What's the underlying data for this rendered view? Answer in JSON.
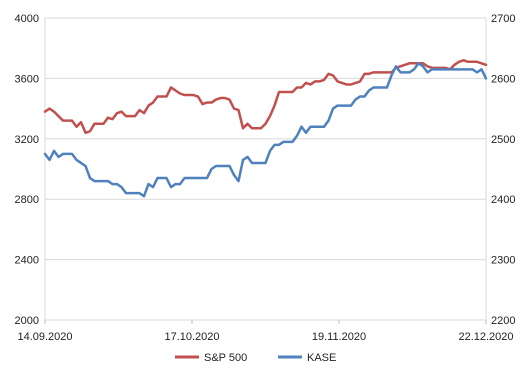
{
  "chart_data": {
    "type": "line",
    "x_ticks": [
      "14.09.2020",
      "17.10.2020",
      "19.11.2020",
      "22.12.2020"
    ],
    "y_left": {
      "ylim": [
        2000,
        4000
      ],
      "ticks": [
        "2000",
        "2400",
        "2800",
        "3200",
        "3600",
        "4000"
      ]
    },
    "y_right": {
      "ylim": [
        2200,
        2700
      ],
      "ticks": [
        "2200",
        "2300",
        "2400",
        "2500",
        "2600",
        "2700"
      ]
    },
    "grid": "horizontal",
    "legend_position": "bottom",
    "series": [
      {
        "name": "S&P 500",
        "axis": "left",
        "color": "#c0504d",
        "values": [
          3380,
          3400,
          3380,
          3350,
          3320,
          3320,
          3320,
          3280,
          3310,
          3240,
          3250,
          3300,
          3300,
          3300,
          3340,
          3330,
          3370,
          3380,
          3350,
          3350,
          3350,
          3390,
          3370,
          3420,
          3440,
          3480,
          3480,
          3480,
          3540,
          3520,
          3500,
          3490,
          3490,
          3490,
          3480,
          3430,
          3440,
          3440,
          3460,
          3470,
          3470,
          3460,
          3400,
          3390,
          3270,
          3300,
          3270,
          3270,
          3270,
          3300,
          3350,
          3420,
          3510,
          3510,
          3510,
          3510,
          3540,
          3540,
          3570,
          3560,
          3580,
          3580,
          3590,
          3630,
          3620,
          3580,
          3570,
          3560,
          3560,
          3570,
          3580,
          3630,
          3630,
          3640,
          3640,
          3640,
          3640,
          3640,
          3670,
          3680,
          3690,
          3700,
          3700,
          3700,
          3700,
          3680,
          3670,
          3670,
          3670,
          3670,
          3660,
          3690,
          3710,
          3720,
          3710,
          3710,
          3710,
          3700,
          3690
        ]
      },
      {
        "name": "KASE",
        "axis": "right",
        "color": "#4f81bd",
        "values": [
          2475,
          2465,
          2480,
          2470,
          2475,
          2475,
          2475,
          2465,
          2460,
          2455,
          2435,
          2430,
          2430,
          2430,
          2430,
          2425,
          2425,
          2420,
          2410,
          2410,
          2410,
          2410,
          2405,
          2425,
          2420,
          2435,
          2435,
          2435,
          2420,
          2425,
          2425,
          2435,
          2435,
          2435,
          2435,
          2435,
          2435,
          2450,
          2455,
          2455,
          2455,
          2455,
          2440,
          2430,
          2465,
          2470,
          2460,
          2460,
          2460,
          2460,
          2480,
          2490,
          2490,
          2495,
          2495,
          2495,
          2505,
          2520,
          2510,
          2520,
          2520,
          2520,
          2520,
          2530,
          2550,
          2555,
          2555,
          2555,
          2555,
          2565,
          2570,
          2570,
          2580,
          2585,
          2585,
          2585,
          2585,
          2605,
          2620,
          2610,
          2610,
          2610,
          2615,
          2625,
          2620,
          2610,
          2615,
          2615,
          2615,
          2615,
          2615,
          2615,
          2615,
          2615,
          2615,
          2615,
          2610,
          2615,
          2600
        ]
      }
    ]
  }
}
